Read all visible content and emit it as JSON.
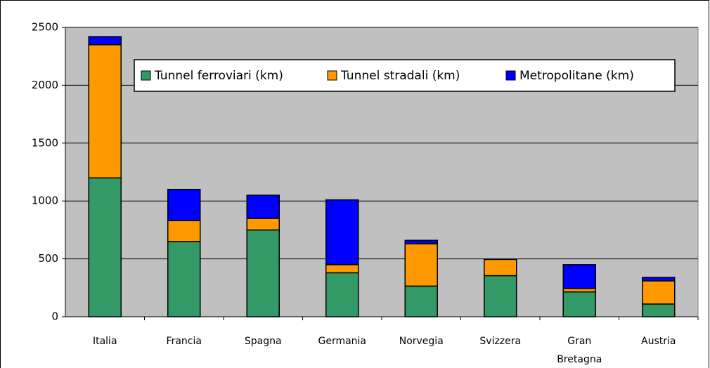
{
  "chart_data": {
    "type": "stacked_bar",
    "categories": [
      "Italia",
      "Francia",
      "Spagna",
      "Germania",
      "Norvegia",
      "Svizzera",
      "Gran Bretagna",
      "Austria"
    ],
    "series": [
      {
        "name": "Tunnel ferroviari (km)",
        "color": "#339966",
        "values": [
          1200,
          650,
          750,
          380,
          265,
          355,
          215,
          110
        ]
      },
      {
        "name": "Tunnel stradali (km)",
        "color": "#ff9900",
        "values": [
          1150,
          180,
          100,
          70,
          365,
          140,
          30,
          200
        ]
      },
      {
        "name": "Metropolitane (km)",
        "color": "#0000ff",
        "values": [
          70,
          270,
          200,
          560,
          30,
          0,
          205,
          30
        ]
      }
    ],
    "ylim": [
      0,
      2500
    ],
    "yticks": [
      0,
      500,
      1000,
      1500,
      2000,
      2500
    ],
    "grid": true,
    "legend": "top"
  }
}
